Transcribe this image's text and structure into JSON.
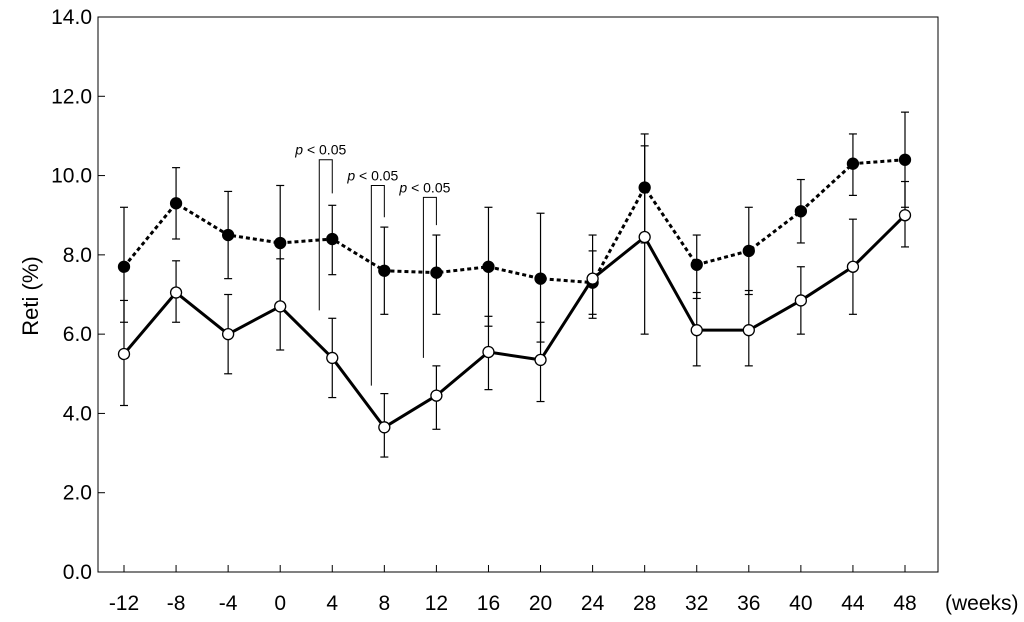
{
  "chart_data": {
    "type": "line",
    "title": "",
    "ylabel": "Reti (%)",
    "xunit": "(weeks)",
    "x": [
      -12,
      -8,
      -4,
      0,
      4,
      8,
      12,
      16,
      20,
      24,
      28,
      32,
      36,
      40,
      44,
      48
    ],
    "x_tick_labels": [
      "-12",
      "-8",
      "-4",
      "0",
      "4",
      "8",
      "12",
      "16",
      "20",
      "24",
      "28",
      "32",
      "36",
      "40",
      "44",
      "48"
    ],
    "ylim": [
      0,
      14
    ],
    "y_ticks": [
      0,
      2,
      4,
      6,
      8,
      10,
      12,
      14
    ],
    "y_tick_labels": [
      "0.0",
      "2.0",
      "4.0",
      "6.0",
      "8.0",
      "10.0",
      "12.0",
      "14.0"
    ],
    "grid": false,
    "legend": "none",
    "series": [
      {
        "marker": "filled-circle",
        "line_style": "dotted",
        "values": [
          7.7,
          9.3,
          8.5,
          8.3,
          8.4,
          7.6,
          7.55,
          7.7,
          7.4,
          7.3,
          9.7,
          7.75,
          8.1,
          9.1,
          10.3,
          10.4
        ],
        "err_low": [
          6.3,
          8.4,
          7.4,
          6.8,
          7.5,
          6.5,
          6.5,
          6.2,
          5.8,
          6.5,
          8.3,
          6.9,
          7.0,
          8.3,
          9.5,
          9.2
        ],
        "err_high": [
          9.2,
          10.2,
          9.6,
          9.75,
          9.25,
          8.7,
          8.5,
          9.2,
          9.05,
          8.1,
          11.05,
          8.5,
          9.2,
          9.9,
          11.05,
          11.6
        ]
      },
      {
        "marker": "open-circle",
        "line_style": "solid",
        "values": [
          5.5,
          7.05,
          6.0,
          6.7,
          5.4,
          3.65,
          4.45,
          5.55,
          5.35,
          7.4,
          8.45,
          6.1,
          6.1,
          6.85,
          7.7,
          9.0
        ],
        "err_low": [
          4.2,
          6.3,
          5.0,
          5.6,
          4.4,
          2.9,
          3.6,
          4.6,
          4.3,
          6.4,
          6.0,
          5.2,
          5.2,
          6.0,
          6.5,
          8.2
        ],
        "err_high": [
          6.85,
          7.85,
          7.0,
          7.9,
          6.4,
          4.5,
          5.2,
          6.45,
          6.3,
          8.5,
          10.75,
          7.05,
          7.1,
          7.7,
          8.9,
          9.85
        ]
      }
    ],
    "significance": [
      {
        "x": 4,
        "label_italic": "p",
        "label_rest": " < 0.05",
        "y_top": 10.4,
        "y_low_left": 6.6,
        "y_low_right": 9.55
      },
      {
        "x": 8,
        "label_italic": "p",
        "label_rest": " < 0.05",
        "y_top": 9.75,
        "y_low_left": 4.7,
        "y_low_right": 8.95
      },
      {
        "x": 12,
        "label_italic": "p",
        "label_rest": " < 0.05",
        "y_top": 9.45,
        "y_low_left": 5.4,
        "y_low_right": 8.75
      }
    ]
  }
}
